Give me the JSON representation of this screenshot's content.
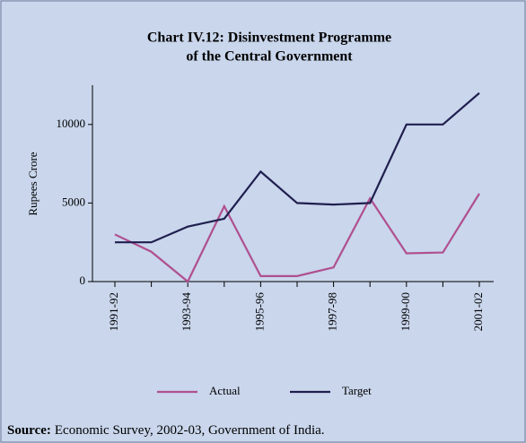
{
  "chart_data": {
    "type": "line",
    "title": "Chart IV.12: Disinvestment Programme",
    "subtitle": "of the Central Government",
    "y_label": "Rupees Crore",
    "categories": [
      "1991-92",
      null,
      "1993-94",
      null,
      "1995-96",
      null,
      "1997-98",
      null,
      "1999-00",
      null,
      "2001-02"
    ],
    "series": [
      {
        "name": "Actual",
        "color": "#b04f8f",
        "values": [
          3000,
          1900,
          0,
          4800,
          350,
          350,
          900,
          5300,
          1800,
          1850,
          5600
        ]
      },
      {
        "name": "Target",
        "color": "#1f1f4e",
        "values": [
          2500,
          2500,
          3500,
          4000,
          7000,
          5000,
          4900,
          5000,
          10000,
          10000,
          12000
        ]
      }
    ],
    "ylim": [
      0,
      12500
    ],
    "yticks": [
      0,
      5000,
      10000
    ],
    "source_label": "Source:",
    "source_text": "Economic Survey, 2002-03, Government of India."
  }
}
